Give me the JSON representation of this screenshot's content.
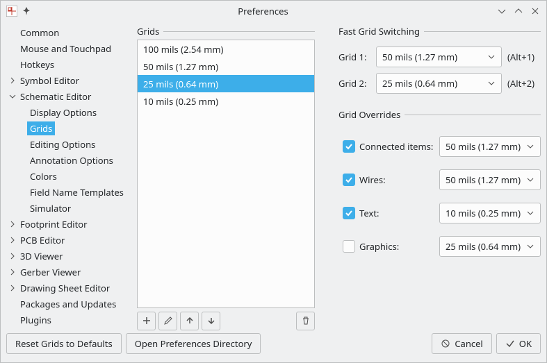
{
  "window": {
    "title": "Preferences"
  },
  "sidebar": {
    "items": [
      {
        "label": "Common",
        "expandable": false,
        "level": 0
      },
      {
        "label": "Mouse and Touchpad",
        "expandable": false,
        "level": 0
      },
      {
        "label": "Hotkeys",
        "expandable": false,
        "level": 0
      },
      {
        "label": "Symbol Editor",
        "expandable": true,
        "expanded": false,
        "level": 0
      },
      {
        "label": "Schematic Editor",
        "expandable": true,
        "expanded": true,
        "level": 0
      },
      {
        "label": "Display Options",
        "level": 1
      },
      {
        "label": "Grids",
        "level": 1,
        "selected": true
      },
      {
        "label": "Editing Options",
        "level": 1
      },
      {
        "label": "Annotation Options",
        "level": 1
      },
      {
        "label": "Colors",
        "level": 1
      },
      {
        "label": "Field Name Templates",
        "level": 1
      },
      {
        "label": "Simulator",
        "level": 1
      },
      {
        "label": "Footprint Editor",
        "expandable": true,
        "expanded": false,
        "level": 0
      },
      {
        "label": "PCB Editor",
        "expandable": true,
        "expanded": false,
        "level": 0
      },
      {
        "label": "3D Viewer",
        "expandable": true,
        "expanded": false,
        "level": 0
      },
      {
        "label": "Gerber Viewer",
        "expandable": true,
        "expanded": false,
        "level": 0
      },
      {
        "label": "Drawing Sheet Editor",
        "expandable": true,
        "expanded": false,
        "level": 0
      },
      {
        "label": "Packages and Updates",
        "expandable": false,
        "level": 0
      },
      {
        "label": "Plugins",
        "expandable": false,
        "level": 0
      }
    ]
  },
  "grids": {
    "header": "Grids",
    "list": [
      {
        "label": "100 mils (2.54 mm)"
      },
      {
        "label": "50 mils (1.27 mm)"
      },
      {
        "label": "25 mils (0.64 mm)",
        "selected": true
      },
      {
        "label": "10 mils (0.25 mm)"
      }
    ]
  },
  "fastSwitch": {
    "header": "Fast Grid Switching",
    "grid1": {
      "label": "Grid 1:",
      "value": "50 mils (1.27 mm)",
      "hint": "(Alt+1)"
    },
    "grid2": {
      "label": "Grid 2:",
      "value": "25 mils (0.64 mm)",
      "hint": "(Alt+2)"
    }
  },
  "overrides": {
    "header": "Grid Overrides",
    "rows": [
      {
        "label": "Connected items:",
        "checked": true,
        "value": "50 mils (1.27 mm)"
      },
      {
        "label": "Wires:",
        "checked": true,
        "value": "50 mils (1.27 mm)"
      },
      {
        "label": "Text:",
        "checked": true,
        "value": "10 mils (0.25 mm)"
      },
      {
        "label": "Graphics:",
        "checked": false,
        "value": "25 mils (0.64 mm)"
      }
    ]
  },
  "footer": {
    "reset": "Reset Grids to Defaults",
    "openDir": "Open Preferences Directory",
    "cancel": "Cancel",
    "ok": "OK"
  }
}
